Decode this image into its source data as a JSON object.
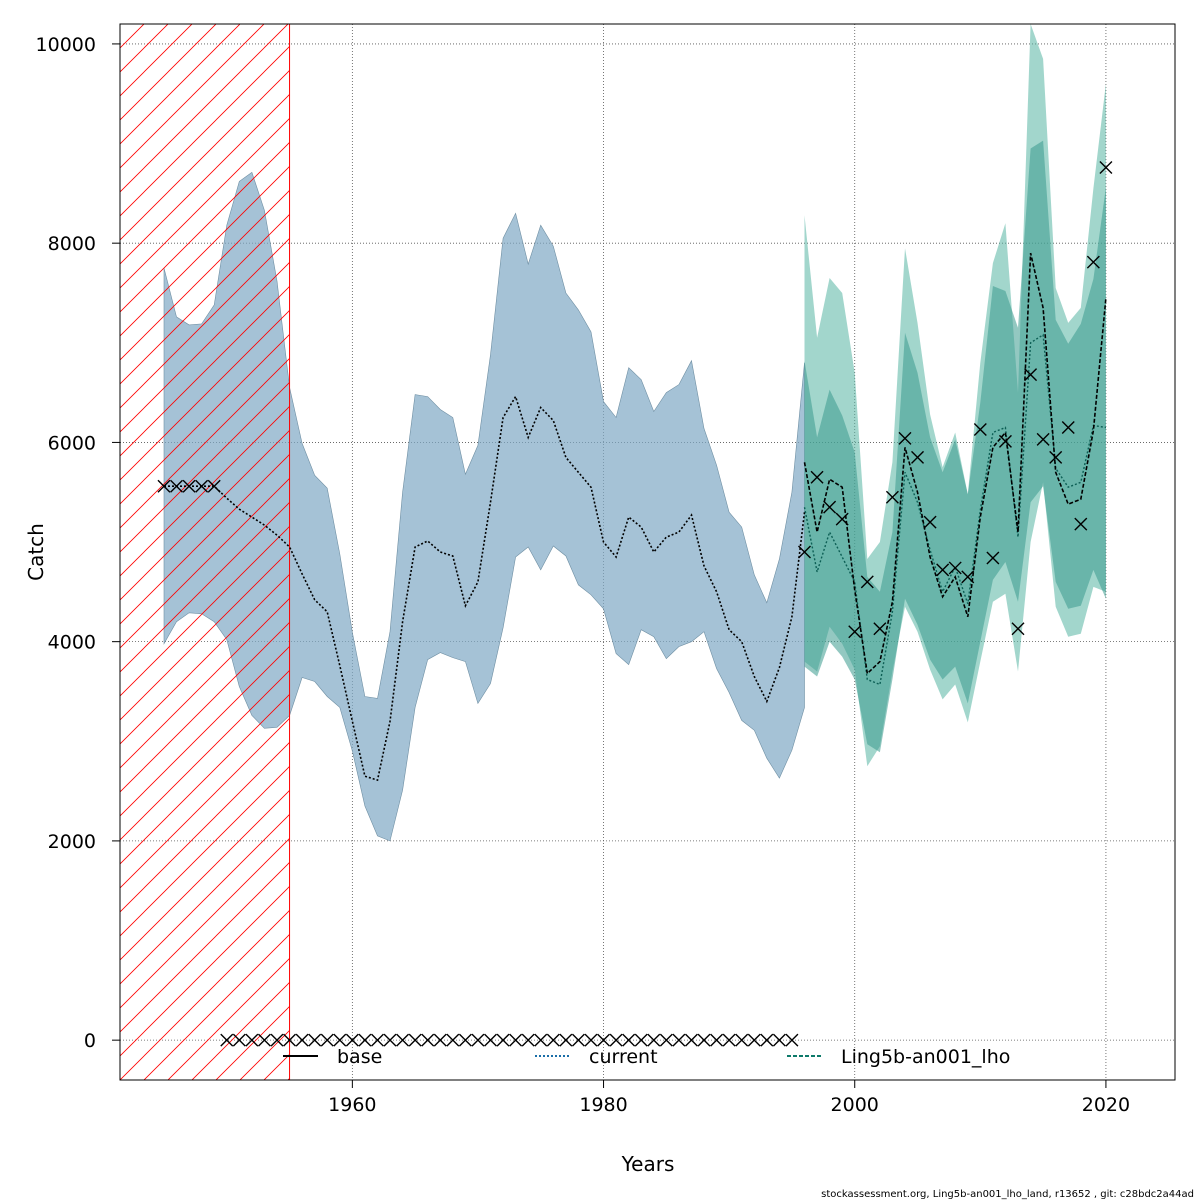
{
  "chart_data": {
    "type": "line",
    "title": "",
    "xlabel": "Years",
    "ylabel": "Catch",
    "xlim": [
      1941.5,
      2025.5
    ],
    "ylim": [
      -400,
      10200
    ],
    "x_ticks": [
      1960,
      1980,
      2000,
      2020
    ],
    "y_ticks": [
      0,
      2000,
      4000,
      6000,
      8000,
      10000
    ],
    "grid": true,
    "legend_position": "bottom",
    "hatched_region": {
      "x_start": 1941.5,
      "x_end": 1955,
      "color": "#ff0000"
    },
    "colors": {
      "base": "#000000",
      "current": "#1a6ea8",
      "ling": "#0d7a6a",
      "current_band": "#7fa8c5",
      "ling_band": "#56b4a3",
      "ling_band_inner": "#3a9a8e",
      "hatch": "#ff0000",
      "grid": "#555555"
    },
    "series": [
      {
        "name": "current",
        "type": "line",
        "x": [
          1945,
          1946,
          1947,
          1948,
          1949,
          1950,
          1951,
          1952,
          1953,
          1954,
          1955,
          1956,
          1957,
          1958,
          1959,
          1960,
          1961,
          1962,
          1963,
          1964,
          1965,
          1966,
          1967,
          1968,
          1969,
          1970,
          1971,
          1972,
          1973,
          1974,
          1975,
          1976,
          1977,
          1978,
          1979,
          1980,
          1981,
          1982,
          1983,
          1984,
          1985,
          1986,
          1987,
          1988,
          1989,
          1990,
          1991,
          1992,
          1993,
          1994,
          1995,
          1996
        ],
        "y": [
          5560,
          5560,
          5560,
          5560,
          5560,
          5440,
          5330,
          5250,
          5170,
          5070,
          4950,
          4680,
          4420,
          4300,
          3760,
          3200,
          2650,
          2610,
          3200,
          4200,
          4950,
          5010,
          4900,
          4860,
          4360,
          4600,
          5400,
          6250,
          6460,
          6050,
          6350,
          6220,
          5850,
          5700,
          5550,
          5000,
          4850,
          5250,
          5150,
          4900,
          5050,
          5100,
          5270,
          4760,
          4500,
          4120,
          4000,
          3650,
          3400,
          3740,
          4250,
          5300
        ],
        "lower": [
          3980,
          4200,
          4290,
          4280,
          4200,
          4020,
          3550,
          3260,
          3130,
          3140,
          3260,
          3640,
          3600,
          3450,
          3340,
          2900,
          2350,
          2050,
          2000,
          2510,
          3340,
          3820,
          3890,
          3840,
          3800,
          3380,
          3580,
          4140,
          4850,
          4950,
          4720,
          4960,
          4860,
          4570,
          4470,
          4330,
          3880,
          3770,
          4120,
          4050,
          3830,
          3950,
          4000,
          4100,
          3730,
          3490,
          3210,
          3110,
          2830,
          2630,
          2910,
          3340
        ],
        "upper": [
          7750,
          7260,
          7180,
          7190,
          7380,
          8180,
          8620,
          8710,
          8330,
          7620,
          6550,
          5990,
          5670,
          5540,
          4880,
          4090,
          3450,
          3430,
          4100,
          5500,
          6480,
          6460,
          6330,
          6250,
          5680,
          5970,
          6880,
          8050,
          8300,
          7790,
          8180,
          7970,
          7500,
          7330,
          7110,
          6410,
          6250,
          6750,
          6630,
          6310,
          6500,
          6580,
          6820,
          6140,
          5770,
          5300,
          5150,
          4670,
          4390,
          4830,
          5500,
          6800
        ]
      },
      {
        "name": "Ling5b-an001_lho",
        "type": "line",
        "x": [
          1996,
          1997,
          1998,
          1999,
          2000,
          2001,
          2002,
          2003,
          2004,
          2005,
          2006,
          2007,
          2008,
          2009,
          2010,
          2011,
          2012,
          2013,
          2014,
          2015,
          2016,
          2017,
          2018,
          2019,
          2020
        ],
        "y": [
          5800,
          5100,
          5630,
          5550,
          4520,
          3680,
          3800,
          4400,
          5950,
          5500,
          4850,
          4450,
          4650,
          4250,
          5250,
          5950,
          6100,
          5100,
          7900,
          7350,
          5700,
          5380,
          5430,
          6120,
          7450
        ],
        "lower": [
          3800,
          3700,
          4150,
          3980,
          3720,
          2750,
          2950,
          3700,
          4350,
          4100,
          3720,
          3420,
          3570,
          3190,
          3800,
          4400,
          4480,
          3700,
          5000,
          5600,
          4350,
          4050,
          4080,
          4550,
          4500
        ],
        "upper": [
          8280,
          7050,
          7650,
          7500,
          6700,
          4830,
          5000,
          5800,
          7950,
          7200,
          6280,
          5750,
          6100,
          5480,
          6800,
          7800,
          8200,
          6500,
          10200,
          9850,
          7550,
          7200,
          7350,
          8550,
          9600
        ],
        "inner_lower": [
          3750,
          3650,
          4000,
          3850,
          3620,
          2970,
          2890,
          3620,
          4430,
          4170,
          3820,
          3620,
          3750,
          3380,
          4000,
          4620,
          4800,
          4400,
          5400,
          5560,
          4600,
          4330,
          4360,
          4720,
          4430
        ],
        "inner_upper": [
          6820,
          6050,
          6530,
          6270,
          5900,
          4650,
          4500,
          5100,
          7100,
          6700,
          6050,
          5700,
          6030,
          5480,
          6400,
          7570,
          7520,
          7150,
          8950,
          9030,
          7230,
          6990,
          7190,
          7640,
          8560
        ],
        "inner_line": [
          5350,
          4700,
          5100,
          4850,
          4600,
          3620,
          3570,
          4300,
          5700,
          5400,
          4920,
          4500,
          4750,
          4380,
          5320,
          6100,
          6150,
          5050,
          7000,
          7080,
          5740,
          5550,
          5600,
          6170,
          6150
        ]
      }
    ],
    "observed": {
      "name": "observed",
      "marker": "x",
      "historical": {
        "x": [
          1945,
          1946,
          1947,
          1948,
          1949
        ],
        "y": [
          5560,
          5560,
          5560,
          5560,
          5560
        ]
      },
      "zero_years": {
        "x": [
          1950,
          1951,
          1952,
          1953,
          1954,
          1955,
          1956,
          1957,
          1958,
          1959,
          1960,
          1961,
          1962,
          1963,
          1964,
          1965,
          1966,
          1967,
          1968,
          1969,
          1970,
          1971,
          1972,
          1973,
          1974,
          1975,
          1976,
          1977,
          1978,
          1979,
          1980,
          1981,
          1982,
          1983,
          1984,
          1985,
          1986,
          1987,
          1988,
          1989,
          1990,
          1991,
          1992,
          1993,
          1994,
          1995
        ],
        "y_value": 0
      },
      "recent": {
        "x": [
          1996,
          1997,
          1998,
          1999,
          2000,
          2001,
          2002,
          2003,
          2004,
          2005,
          2006,
          2007,
          2008,
          2009,
          2010,
          2011,
          2012,
          2013,
          2014,
          2015,
          2016,
          2017,
          2018,
          2019,
          2020
        ],
        "y": [
          4900,
          5650,
          5350,
          5230,
          4100,
          4600,
          4130,
          5450,
          6040,
          5850,
          5200,
          4720,
          4740,
          4650,
          6130,
          4840,
          6010,
          4130,
          6680,
          6030,
          5850,
          6150,
          5180,
          7810,
          8760
        ]
      }
    },
    "legend": [
      {
        "label": "base",
        "style": "solid"
      },
      {
        "label": "current",
        "style": "dotted"
      },
      {
        "label": "Ling5b-an001_lho",
        "style": "dashed"
      }
    ]
  },
  "footer_text": "stockassessment.org, Ling5b-an001_lho_land, r13652 , git: c28bdc2a44ad"
}
